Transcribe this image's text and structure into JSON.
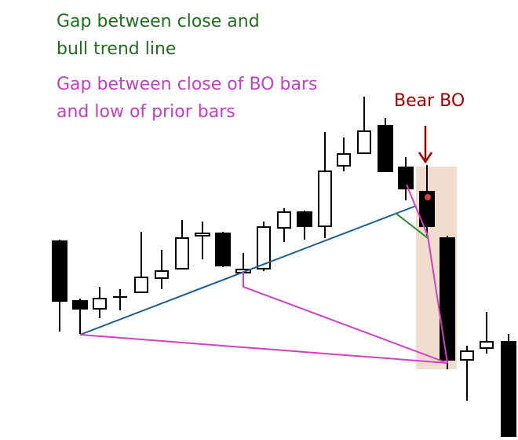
{
  "annotations": {
    "trend_gap": [
      "Gap between close and",
      "bull trend line"
    ],
    "bo_gap": [
      "Gap between close of BO bars",
      "and low of prior bars"
    ],
    "bear_bo": "Bear BO"
  }
}
